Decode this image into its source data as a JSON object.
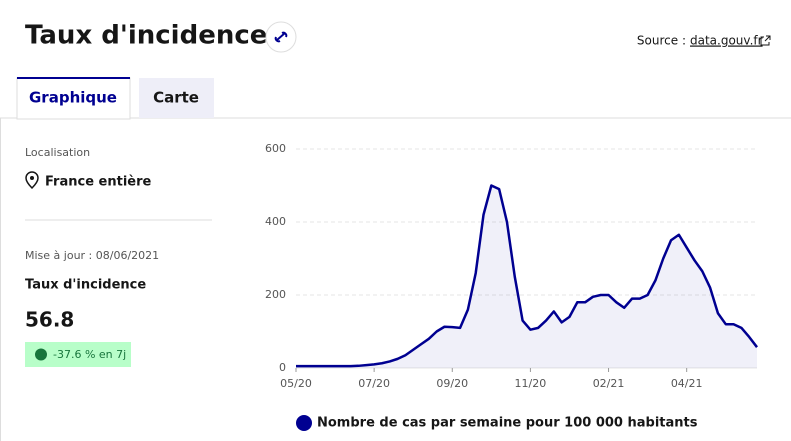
{
  "header": {
    "title": "Taux d'incidence",
    "source_label": "Source :",
    "source_link": "data.gouv.fr"
  },
  "tabs": [
    "Graphique",
    "Carte"
  ],
  "sidebar": {
    "location_label": "Localisation",
    "location": "France entière",
    "updated": "Mise à jour : 08/06/2021",
    "indicator": "Taux d'incidence",
    "value": "56.8",
    "trend": "-37.6 % en 7j"
  },
  "chart_data": {
    "type": "line",
    "categories": [
      "05/20",
      null,
      null,
      null,
      null,
      null,
      null,
      null,
      null,
      null,
      "07/20",
      null,
      null,
      null,
      null,
      null,
      null,
      null,
      null,
      null,
      "09/20",
      null,
      null,
      null,
      null,
      null,
      null,
      null,
      null,
      null,
      "11/20",
      null,
      null,
      null,
      null,
      null,
      null,
      null,
      null,
      null,
      "02/21",
      null,
      null,
      null,
      null,
      null,
      null,
      null,
      null,
      null,
      "04/21",
      null,
      null,
      null,
      null,
      null,
      null,
      null,
      null,
      null
    ],
    "series": [
      {
        "name": "Nombre de cas par semaine pour 100 000 habitants",
        "color": "#000091",
        "values": [
          5,
          5,
          5,
          5,
          5,
          5,
          5,
          5,
          6,
          8,
          10,
          13,
          18,
          25,
          35,
          50,
          65,
          80,
          100,
          113,
          112,
          110,
          160,
          260,
          420,
          500,
          490,
          400,
          250,
          130,
          105,
          110,
          130,
          155,
          125,
          140,
          180,
          180,
          195,
          200,
          200,
          180,
          165,
          190,
          190,
          200,
          240,
          300,
          350,
          365,
          330,
          295,
          265,
          220,
          150,
          120,
          120,
          110,
          85,
          57
        ]
      }
    ],
    "ylim": [
      0,
      600
    ],
    "yticks": [
      0,
      200,
      400,
      600
    ],
    "grid": true
  }
}
